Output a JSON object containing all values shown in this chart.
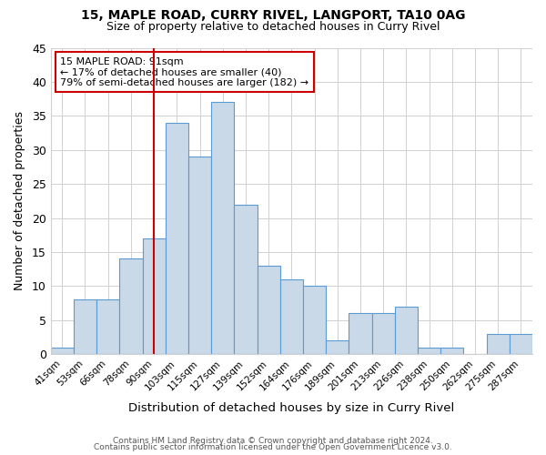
{
  "title1": "15, MAPLE ROAD, CURRY RIVEL, LANGPORT, TA10 0AG",
  "title2": "Size of property relative to detached houses in Curry Rivel",
  "xlabel": "Distribution of detached houses by size in Curry Rivel",
  "ylabel": "Number of detached properties",
  "footnote1": "Contains HM Land Registry data © Crown copyright and database right 2024.",
  "footnote2": "Contains public sector information licensed under the Open Government Licence v3.0.",
  "annotation_line1": "15 MAPLE ROAD: 91sqm",
  "annotation_line2": "← 17% of detached houses are smaller (40)",
  "annotation_line3": "79% of semi-detached houses are larger (182) →",
  "bar_labels": [
    "41sqm",
    "53sqm",
    "66sqm",
    "78sqm",
    "90sqm",
    "103sqm",
    "115sqm",
    "127sqm",
    "139sqm",
    "152sqm",
    "164sqm",
    "176sqm",
    "189sqm",
    "201sqm",
    "213sqm",
    "226sqm",
    "238sqm",
    "250sqm",
    "262sqm",
    "275sqm",
    "287sqm"
  ],
  "bar_values": [
    1,
    8,
    8,
    14,
    17,
    34,
    29,
    37,
    22,
    13,
    11,
    10,
    2,
    6,
    6,
    7,
    1,
    1,
    0,
    3,
    3
  ],
  "bar_color": "#c9d9e8",
  "bar_edge_color": "#5b9bd5",
  "vline_x_index": 4,
  "vline_color": "#cc0000",
  "annotation_box_color": "#cc0000",
  "ylim": [
    0,
    45
  ],
  "yticks": [
    0,
    5,
    10,
    15,
    20,
    25,
    30,
    35,
    40,
    45
  ],
  "background_color": "#ffffff",
  "grid_color": "#d0d0d0"
}
